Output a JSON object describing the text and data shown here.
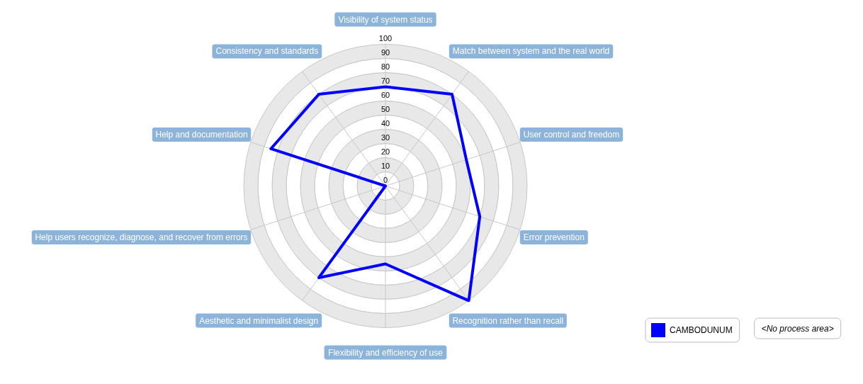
{
  "chart_data": {
    "type": "radar",
    "categories": [
      "Visibility of system status",
      "Match between system and the real world",
      "User control and freedom",
      "Error prevention",
      "Recognition rather than recall",
      "Flexibility and efficiency of use",
      "Aesthetic and minimalist design",
      "Help users recognize, diagnose, and recover from errors",
      "Help and documentation",
      "Consistency and standards"
    ],
    "series": [
      {
        "name": "CAMBODUNUM",
        "color": "#0000ff",
        "values": [
          70,
          80,
          60,
          70,
          100,
          55,
          80,
          0,
          85,
          80
        ]
      }
    ],
    "ylim": [
      0,
      100
    ],
    "yticks": [
      0,
      10,
      20,
      30,
      40,
      50,
      60,
      70,
      80,
      90,
      100
    ],
    "grid": true,
    "legend": "bottom right",
    "annotations": [
      "<No process area>"
    ]
  }
}
